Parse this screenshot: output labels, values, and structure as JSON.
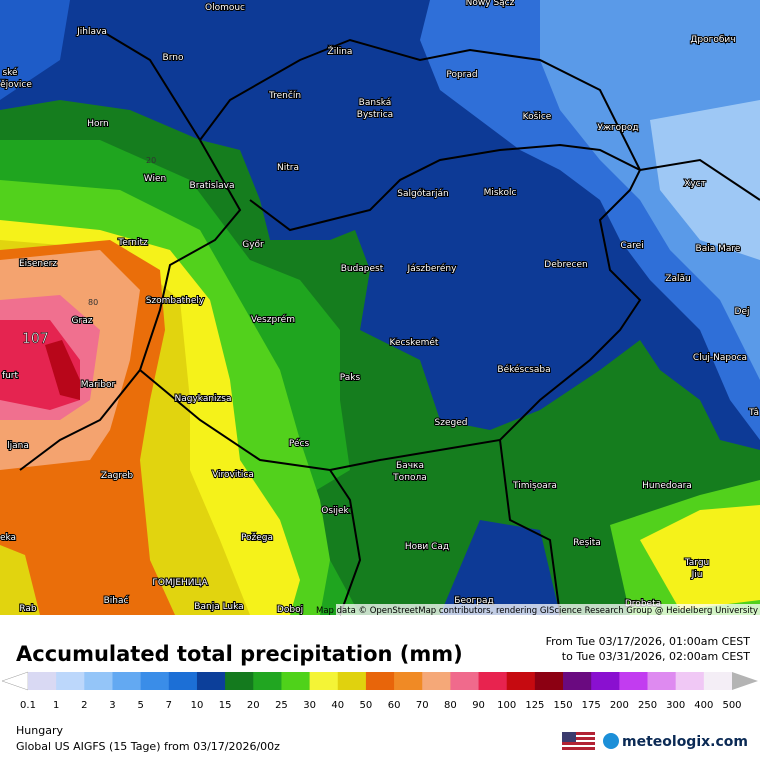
{
  "map": {
    "places": [
      "Olomouc",
      "Nowy Sącz",
      "Jihlava",
      "Žilina",
      "Дрогобич",
      "Brno",
      "Poprad",
      "ské",
      "ějovice",
      "Trenčín",
      "Banská",
      "Bystrica",
      "Košice",
      "Horn",
      "Ужгород",
      "Nitra",
      "Wien",
      "Bratislava",
      "Salgótarján",
      "Miskolc",
      "Хуст",
      "Carei",
      "Baia Mare",
      "Ternitz",
      "Győr",
      "Budapest",
      "Jászberény",
      "Debrecen",
      "Eisenerz",
      "Szombathely",
      "Veszprém",
      "Zalău",
      "Graz",
      "Dej",
      "Cluj-Napoca",
      "Kecskemét",
      "Maribor",
      "furt",
      "Paks",
      "Békéscsaba",
      "Nagykanizsa",
      "Tâ",
      "Szeged",
      "Pécs",
      "ljana",
      "Zagreb",
      "Virovitica",
      "Бачка",
      "Топола",
      "Timișoara",
      "Hunedoara",
      "Osijek",
      "Požega",
      "Нови Сад",
      "Reșita",
      "eka",
      "Targu",
      "Jiu",
      "ГОМЈЕНИЦА",
      "Bihać",
      "Banja Luka",
      "Београд",
      "Doboj",
      "Drobeta",
      "Rab"
    ],
    "contour_labels": [
      20,
      80
    ],
    "max_label": 107,
    "attribution": "Map data © OpenStreetMap contributors, rendering GIScience Research Group @ Heidelberg University"
  },
  "header": {
    "title": "Accumulated total precipitation (mm)",
    "from": "From Tue 03/17/2026, 01:00am CEST",
    "to": "to Tue 03/31/2026, 02:00am CEST"
  },
  "legend": {
    "ticks": [
      0.1,
      1,
      2,
      3,
      5,
      7,
      10,
      15,
      20,
      25,
      30,
      40,
      50,
      60,
      70,
      80,
      90,
      100,
      125,
      150,
      175,
      200,
      250,
      300,
      400,
      500
    ],
    "colors": [
      "#d9d9f3",
      "#bcd7fb",
      "#94c5f8",
      "#63a9f2",
      "#3a8de8",
      "#1c6fd6",
      "#0c3f9a",
      "#147a1e",
      "#21a621",
      "#4fd21a",
      "#f4f436",
      "#e0d20e",
      "#e8650a",
      "#f08a25",
      "#f5a878",
      "#f06a8c",
      "#e8234f",
      "#c60a10",
      "#8c0012",
      "#6a0a80",
      "#8a10d0",
      "#c23cf0",
      "#de8af0",
      "#f0c8f5",
      "#f4eef6"
    ],
    "under_color": "#ffffff",
    "over_color": "#b4b4b4"
  },
  "footer": {
    "region": "Hungary",
    "model": "Global US AIGFS (15 Tage) from 03/17/2026/00z",
    "brand": "meteologix.com"
  }
}
